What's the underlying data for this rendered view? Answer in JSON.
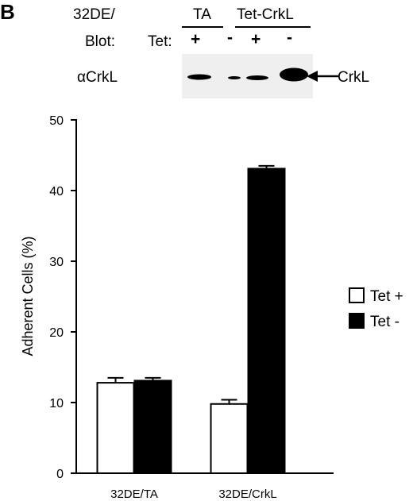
{
  "panel_letter": "B",
  "blot": {
    "strain_prefix": "32DE/",
    "groups": [
      "TA",
      "Tet-CrkL"
    ],
    "blot_label": "Blot:",
    "tet_label": "Tet:",
    "lane_signs": [
      "+",
      "-",
      "+",
      "-"
    ],
    "antibody": "αCrkL",
    "band_label": "CrkL",
    "band_intensity": [
      0.55,
      0.1,
      0.35,
      1.0
    ]
  },
  "chart_data": {
    "type": "bar",
    "categories": [
      "32DE/TA",
      "32DE/CrkL"
    ],
    "series": [
      {
        "name": "Tet +",
        "values": [
          12.8,
          9.8
        ],
        "errors": [
          0.7,
          0.6
        ],
        "color": "#ffffff"
      },
      {
        "name": "Tet -",
        "values": [
          13.1,
          43.1
        ],
        "errors": [
          0.4,
          0.4
        ],
        "color": "#000000"
      }
    ],
    "ylabel": "Adherent Cells (%)",
    "xlabel": "",
    "ylim": [
      0,
      50
    ],
    "yticks": [
      "0",
      "10",
      "20",
      "30",
      "40",
      "50"
    ],
    "legend_position": "right"
  }
}
